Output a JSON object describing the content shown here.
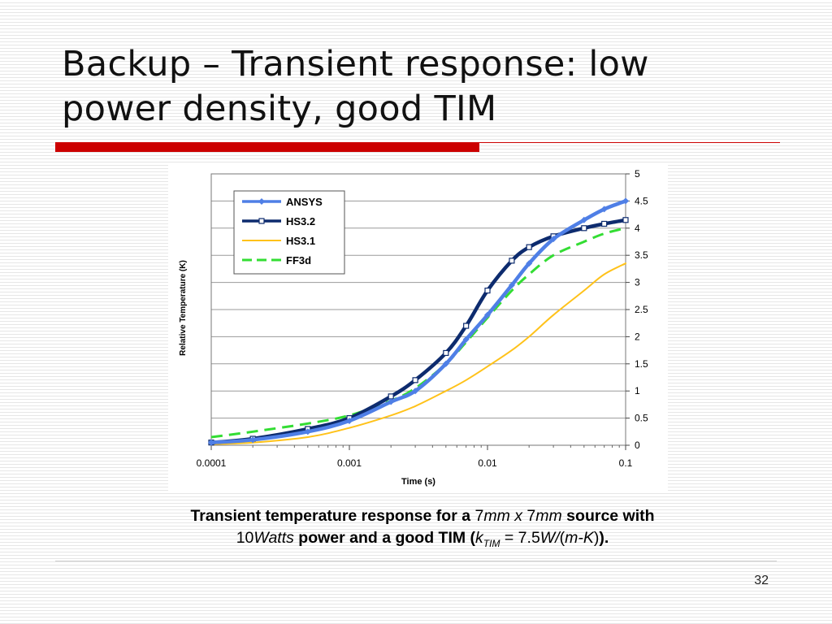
{
  "slide": {
    "title_line1": "Backup – Transient response: low",
    "title_line2": "power density, good TIM",
    "page_number": "32",
    "accent_color": "#cc0000"
  },
  "caption": {
    "p1": "Transient temperature response for a ",
    "n1": "7",
    "u1": "mm x ",
    "n2": "7",
    "u2": "mm",
    "p2": " source with",
    "n3": "10",
    "u3": "Watts",
    "p3": " power and a good TIM (",
    "k": "k",
    "ksub": "TIM",
    "eq": " = 7.5",
    "unit_w": "W/",
    "paren_open": "(",
    "unit_mk": "m-K",
    "paren_close": ")",
    "end": ")."
  },
  "chart_data": {
    "type": "line",
    "title": "",
    "xlabel": "Time (s)",
    "ylabel": "Relative Temperature (K)",
    "xscale": "log",
    "xlim": [
      0.0001,
      0.1
    ],
    "ylim": [
      0,
      5
    ],
    "y_axis_side": "right",
    "xticks": [
      "0.0001",
      "0.001",
      "0.01",
      "0.1"
    ],
    "yticks": [
      "0",
      "0.5",
      "1",
      "1.5",
      "2",
      "2.5",
      "3",
      "3.5",
      "4",
      "4.5",
      "5"
    ],
    "legend_position": "top-left",
    "grid": "horizontal",
    "x": [
      0.0001,
      0.0002,
      0.0005,
      0.001,
      0.002,
      0.003,
      0.005,
      0.007,
      0.01,
      0.015,
      0.02,
      0.03,
      0.05,
      0.07,
      0.1
    ],
    "series": [
      {
        "name": "ANSYS",
        "color": "#4f7fe6",
        "style": "solid-diamond",
        "values": [
          0.05,
          0.1,
          0.25,
          0.45,
          0.8,
          1.0,
          1.5,
          1.95,
          2.4,
          2.95,
          3.35,
          3.8,
          4.15,
          4.35,
          4.5
        ]
      },
      {
        "name": "HS3.2",
        "color": "#0d2b6e",
        "style": "solid-square",
        "values": [
          0.05,
          0.12,
          0.3,
          0.5,
          0.9,
          1.2,
          1.7,
          2.2,
          2.85,
          3.4,
          3.65,
          3.85,
          4.0,
          4.08,
          4.15
        ]
      },
      {
        "name": "HS3.1",
        "color": "#ffc21a",
        "style": "solid",
        "values": [
          0.02,
          0.05,
          0.15,
          0.32,
          0.55,
          0.72,
          1.0,
          1.2,
          1.45,
          1.75,
          2.0,
          2.4,
          2.85,
          3.15,
          3.35
        ]
      },
      {
        "name": "FF3d",
        "color": "#33dd33",
        "style": "dashed",
        "values": [
          0.15,
          0.25,
          0.4,
          0.55,
          0.82,
          1.05,
          1.5,
          1.9,
          2.35,
          2.85,
          3.15,
          3.5,
          3.75,
          3.9,
          4.0
        ]
      }
    ]
  }
}
